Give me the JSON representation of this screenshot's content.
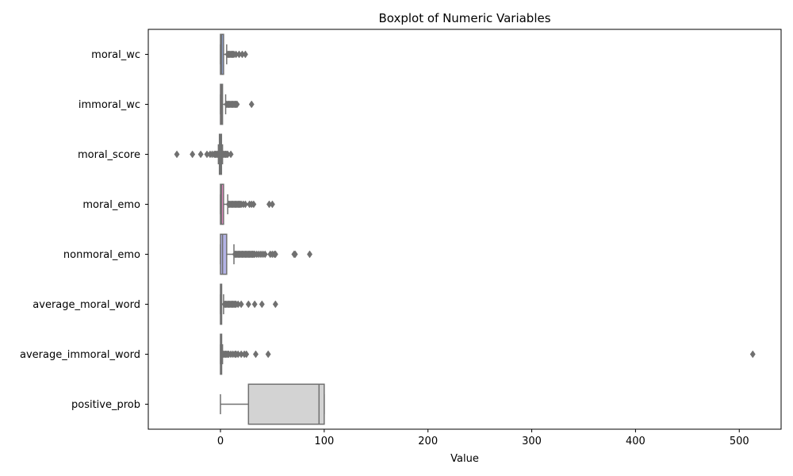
{
  "chart_data": {
    "type": "boxplot",
    "title": "Boxplot of Numeric Variables",
    "xlabel": "Value",
    "ylabel": "",
    "xlim": [
      -70,
      540
    ],
    "xticks": [
      0,
      100,
      200,
      300,
      400,
      500
    ],
    "grid": false,
    "legend": "none",
    "orientation": "horizontal",
    "series": [
      {
        "name": "moral_wc",
        "color": "#8da0cb",
        "min": 0,
        "q1": 0,
        "median": 1,
        "q3": 3,
        "max": 6,
        "outliers": [
          7,
          8,
          9,
          10,
          11,
          12,
          13,
          15,
          18,
          21,
          24
        ]
      },
      {
        "name": "immoral_wc",
        "color": "#fc8d62",
        "min": 0,
        "q1": 0,
        "median": 1,
        "q3": 2,
        "max": 5,
        "outliers": [
          6,
          7,
          8,
          9,
          10,
          11,
          12,
          13,
          14,
          15,
          16,
          30
        ]
      },
      {
        "name": "moral_score",
        "color": "#66c2a5",
        "min": -2,
        "q1": -1,
        "median": 0,
        "q3": 1,
        "max": 2,
        "outliers": [
          -42,
          -27,
          -19,
          -13,
          -10,
          -8,
          -6,
          -5,
          -4,
          -3,
          3,
          4,
          5,
          6,
          7,
          10
        ]
      },
      {
        "name": "moral_emo",
        "color": "#e78ac3",
        "min": 0,
        "q1": 0,
        "median": 1,
        "q3": 3,
        "max": 7,
        "outliers": [
          8,
          9,
          10,
          11,
          12,
          13,
          14,
          15,
          16,
          17,
          18,
          19,
          20,
          22,
          24,
          28,
          30,
          32,
          47,
          50
        ]
      },
      {
        "name": "nonmoral_emo",
        "color": "#b3b3e6",
        "min": 0,
        "q1": 0,
        "median": 2,
        "q3": 6,
        "max": 13,
        "outliers": [
          14,
          15,
          16,
          17,
          18,
          19,
          20,
          21,
          22,
          23,
          24,
          25,
          26,
          27,
          28,
          29,
          30,
          31,
          32,
          33,
          35,
          37,
          39,
          41,
          43,
          48,
          50,
          52,
          53,
          71,
          72,
          86
        ]
      },
      {
        "name": "average_moral_word",
        "color": "#a6d854",
        "min": 0,
        "q1": 0,
        "median": 0.5,
        "q3": 1,
        "max": 3,
        "outliers": [
          4,
          5,
          6,
          7,
          8,
          9,
          10,
          11,
          12,
          13,
          14,
          15,
          17,
          20,
          27,
          33,
          40,
          53
        ]
      },
      {
        "name": "average_immoral_word",
        "color": "#ffd92f",
        "min": 0,
        "q1": 0,
        "median": 0.5,
        "q3": 1,
        "max": 2,
        "outliers": [
          3,
          4,
          5,
          6,
          7,
          8,
          10,
          12,
          14,
          15,
          17,
          20,
          23,
          25,
          34,
          46,
          513
        ]
      },
      {
        "name": "positive_prob",
        "color": "#d3d3d3",
        "min": 0,
        "q1": 27,
        "median": 95,
        "q3": 100,
        "max": 100,
        "outliers": []
      }
    ]
  }
}
